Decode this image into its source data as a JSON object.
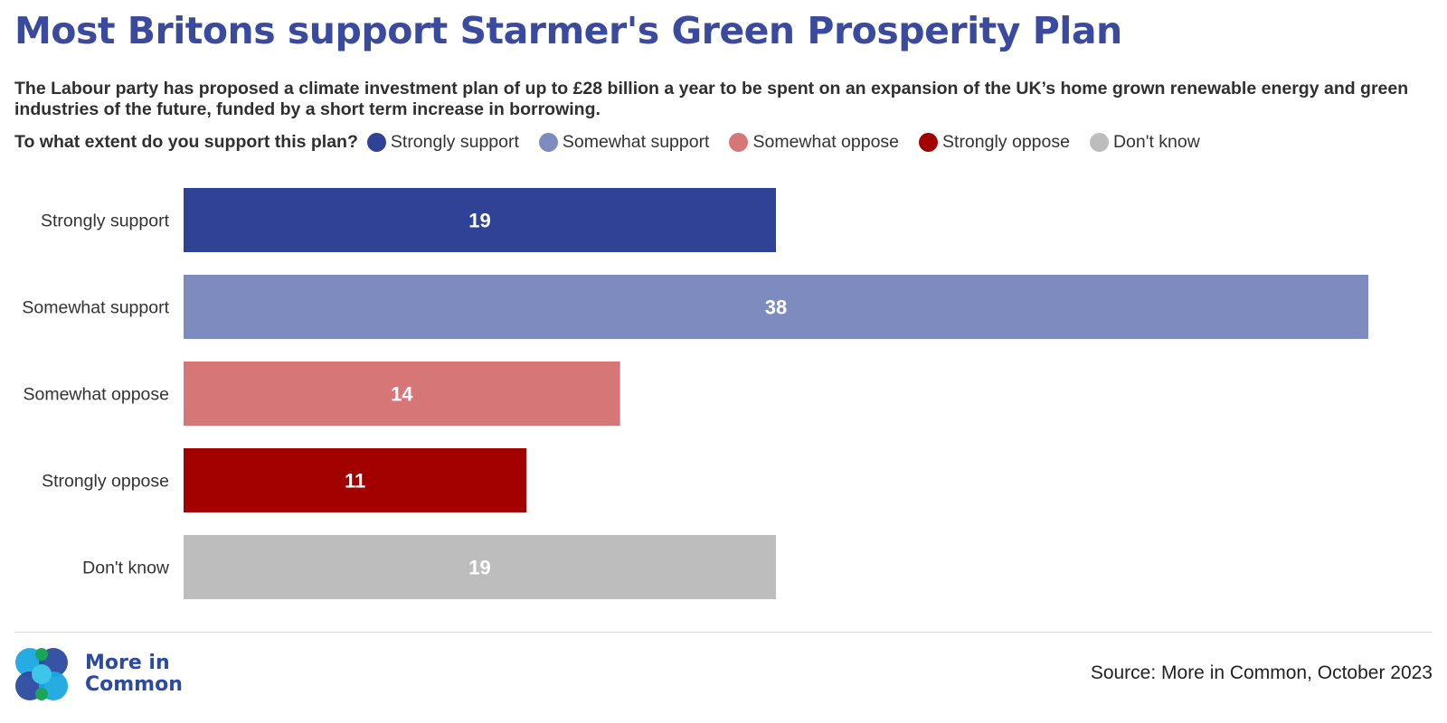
{
  "title": "Most Britons support Starmer's Green Prosperity Plan",
  "subtitle": "The Labour party has proposed a climate investment plan of up to £28 billion a year to be spent on an expansion of the UK’s home grown renewable energy and green industries of the future, funded by a short term increase in borrowing.",
  "legend": {
    "question": "To what extent do you support this plan?",
    "items": [
      {
        "label": "Strongly support",
        "color": "#2f4295"
      },
      {
        "label": "Somewhat support",
        "color": "#7d8bbf"
      },
      {
        "label": "Somewhat oppose",
        "color": "#d67676"
      },
      {
        "label": "Strongly oppose",
        "color": "#a30000"
      },
      {
        "label": "Don't know",
        "color": "#bdbdbd"
      }
    ]
  },
  "chart_data": {
    "type": "bar",
    "orientation": "horizontal",
    "categories": [
      "Strongly support",
      "Somewhat support",
      "Somewhat oppose",
      "Strongly oppose",
      "Don't know"
    ],
    "values": [
      19,
      38,
      14,
      11,
      19
    ],
    "colors": [
      "#2f4295",
      "#7d8bbf",
      "#d67676",
      "#a30000",
      "#bdbdbd"
    ],
    "data_labels": true,
    "grid": false,
    "xlim": [
      0,
      38
    ]
  },
  "footer": {
    "logo_line1": "More in",
    "logo_line2": "Common",
    "source": "Source: More in Common, October 2023"
  }
}
